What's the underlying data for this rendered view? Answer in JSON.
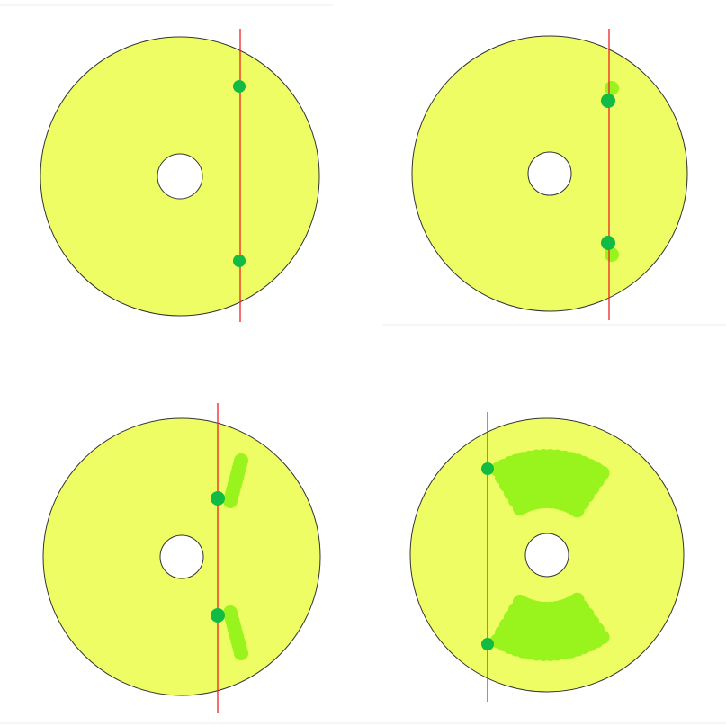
{
  "colors": {
    "background": "#ffffff",
    "disc_fill": "#eefd64",
    "disc_stroke": "#333333",
    "hole_fill": "#ffffff",
    "cut_line": "#ee2222",
    "contact_point": "#11bb44",
    "trace": "#99f31c"
  },
  "panels": [
    {
      "id": "panel-1",
      "trace_shape": "none"
    },
    {
      "id": "panel-2",
      "trace_shape": "small-offsets"
    },
    {
      "id": "panel-3",
      "trace_shape": "short-diagonal-streaks"
    },
    {
      "id": "panel-4",
      "trace_shape": "wide-arc-bands"
    }
  ]
}
